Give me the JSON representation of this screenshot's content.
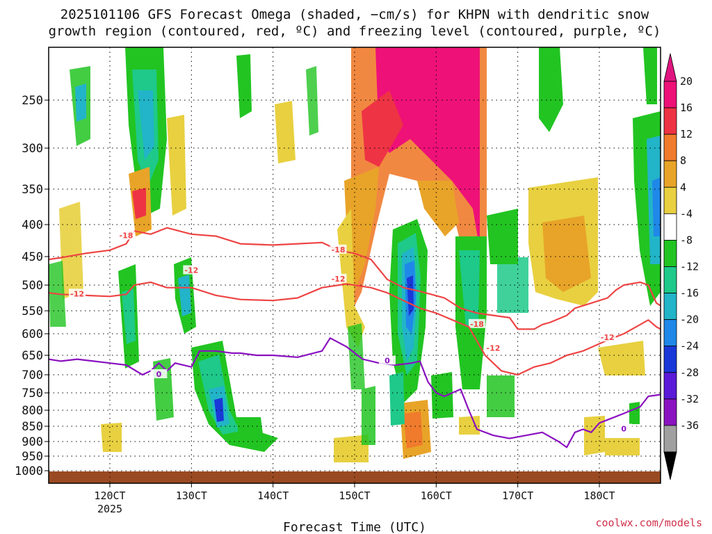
{
  "chart_data": {
    "type": "time-height contour",
    "title_line1": "2025101106 GFS Forecast Omega (shaded, −cm/s) for KHPN with dendritic snow",
    "title_line2": "growth region (contoured, red, ºC) and freezing level (contoured, purple, ºC)",
    "xlabel": "Forecast Time (UTC)",
    "credit": "coolwx.com/models",
    "x_range": [
      112.5,
      187.5
    ],
    "x_ticks": [
      {
        "value": 120,
        "label": "120CT",
        "sub": "2025"
      },
      {
        "value": 130,
        "label": "130CT",
        "sub": ""
      },
      {
        "value": 140,
        "label": "140CT",
        "sub": ""
      },
      {
        "value": 150,
        "label": "150CT",
        "sub": ""
      },
      {
        "value": 160,
        "label": "160CT",
        "sub": ""
      },
      {
        "value": 170,
        "label": "170CT",
        "sub": ""
      },
      {
        "value": 180,
        "label": "180CT",
        "sub": ""
      }
    ],
    "y_ticks": [
      "250",
      "300",
      "350",
      "400",
      "450",
      "500",
      "550",
      "600",
      "650",
      "700",
      "750",
      "800",
      "850",
      "900",
      "950",
      "1000"
    ],
    "colorbar": {
      "labels": [
        "20",
        "16",
        "12",
        "8",
        "4",
        "-4",
        "-8",
        "-12",
        "-16",
        "-20",
        "-24",
        "-28",
        "-32",
        "-36"
      ],
      "colors": [
        "#ee1177",
        "#ee3344",
        "#f07b2c",
        "#e8a428",
        "#e8d040",
        "#ffffff",
        "#22c422",
        "#1ec98a",
        "#22b4c8",
        "#1f88e8",
        "#1a38d8",
        "#5a1ad8",
        "#8a12c0",
        "#a0a0a0"
      ],
      "top_arrow": "#e01480",
      "bottom_arrow": "#000000"
    },
    "contours": [
      {
        "name": "minus18-line",
        "level": "-18",
        "color": "#ee4444",
        "points": [
          [
            112.5,
            455
          ],
          [
            114,
            452
          ],
          [
            117,
            445
          ],
          [
            120,
            440
          ],
          [
            122,
            430
          ],
          [
            123,
            410
          ],
          [
            125,
            415
          ],
          [
            127,
            405
          ],
          [
            130,
            415
          ],
          [
            133,
            418
          ],
          [
            136,
            430
          ],
          [
            140,
            432
          ],
          [
            143,
            430
          ],
          [
            146,
            428
          ],
          [
            148,
            440
          ],
          [
            150,
            445
          ],
          [
            152,
            455
          ],
          [
            154,
            490
          ],
          [
            156,
            505
          ],
          [
            158,
            512
          ],
          [
            161,
            525
          ],
          [
            163,
            545
          ],
          [
            165,
            555
          ],
          [
            167,
            560
          ],
          [
            169,
            565
          ],
          [
            170,
            590
          ],
          [
            172,
            590
          ],
          [
            173,
            580
          ],
          [
            174,
            575
          ],
          [
            176,
            560
          ],
          [
            177,
            545
          ],
          [
            179,
            535
          ],
          [
            181,
            525
          ],
          [
            182,
            510
          ],
          [
            183,
            500
          ],
          [
            185,
            495
          ],
          [
            186,
            500
          ],
          [
            187,
            535
          ],
          [
            187.5,
            540
          ]
        ],
        "labels": [
          [
            122,
            418
          ],
          [
            148,
            440
          ],
          [
            165,
            580
          ]
        ]
      },
      {
        "name": "minus12-line",
        "level": "-12",
        "color": "#ee4444",
        "points": [
          [
            112.5,
            515
          ],
          [
            114,
            518
          ],
          [
            117,
            520
          ],
          [
            120,
            522
          ],
          [
            122,
            518
          ],
          [
            123,
            500
          ],
          [
            125,
            495
          ],
          [
            127,
            505
          ],
          [
            130,
            505
          ],
          [
            133,
            520
          ],
          [
            136,
            528
          ],
          [
            140,
            530
          ],
          [
            143,
            525
          ],
          [
            146,
            505
          ],
          [
            149,
            498
          ],
          [
            152,
            505
          ],
          [
            154,
            515
          ],
          [
            156,
            530
          ],
          [
            158,
            545
          ],
          [
            160,
            555
          ],
          [
            162,
            570
          ],
          [
            164,
            585
          ],
          [
            166,
            650
          ],
          [
            168,
            690
          ],
          [
            170,
            700
          ],
          [
            172,
            680
          ],
          [
            174,
            670
          ],
          [
            176,
            650
          ],
          [
            178,
            640
          ],
          [
            181,
            615
          ],
          [
            183,
            600
          ],
          [
            185,
            580
          ],
          [
            186,
            570
          ],
          [
            187,
            585
          ],
          [
            187.5,
            590
          ]
        ],
        "labels": [
          [
            116,
            518
          ],
          [
            130,
            475
          ],
          [
            148,
            490
          ],
          [
            167,
            635
          ],
          [
            181,
            610
          ]
        ]
      },
      {
        "name": "freezing-line",
        "level": "0",
        "color": "#8a10c0",
        "points": [
          [
            112.5,
            660
          ],
          [
            114,
            665
          ],
          [
            116,
            660
          ],
          [
            118,
            665
          ],
          [
            120,
            670
          ],
          [
            122,
            675
          ],
          [
            124,
            700
          ],
          [
            125,
            690
          ],
          [
            126,
            670
          ],
          [
            127,
            690
          ],
          [
            128,
            670
          ],
          [
            130,
            680
          ],
          [
            131,
            640
          ],
          [
            133,
            640
          ],
          [
            135,
            645
          ],
          [
            136,
            645
          ],
          [
            138,
            650
          ],
          [
            140,
            650
          ],
          [
            143,
            655
          ],
          [
            146,
            640
          ],
          [
            147,
            610
          ],
          [
            149,
            630
          ],
          [
            151,
            660
          ],
          [
            153,
            670
          ],
          [
            155,
            675
          ],
          [
            157,
            670
          ],
          [
            158,
            665
          ],
          [
            159,
            720
          ],
          [
            160,
            750
          ],
          [
            161,
            760
          ],
          [
            163,
            740
          ],
          [
            164,
            800
          ],
          [
            165,
            860
          ],
          [
            167,
            880
          ],
          [
            169,
            890
          ],
          [
            171,
            880
          ],
          [
            173,
            870
          ],
          [
            175,
            900
          ],
          [
            176,
            920
          ],
          [
            177,
            870
          ],
          [
            178,
            860
          ],
          [
            179,
            870
          ],
          [
            180,
            840
          ],
          [
            181,
            830
          ],
          [
            183,
            810
          ],
          [
            185,
            790
          ],
          [
            186,
            760
          ],
          [
            187.5,
            755
          ]
        ],
        "labels": [
          [
            126,
            700
          ],
          [
            154,
            665
          ],
          [
            183,
            860
          ]
        ]
      }
    ]
  }
}
